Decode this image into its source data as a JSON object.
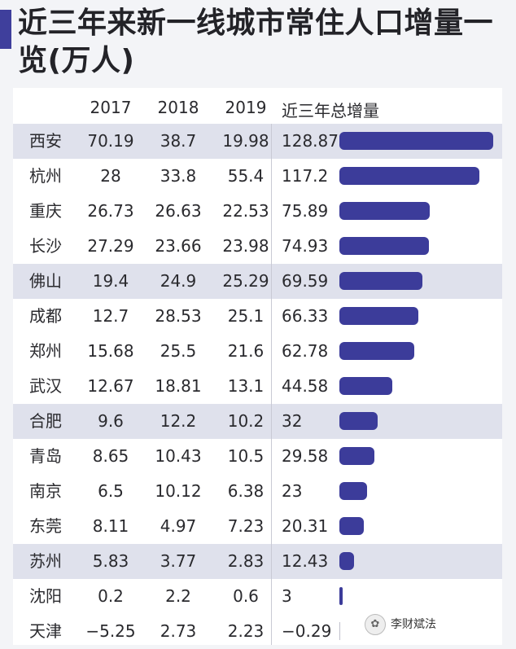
{
  "title": "近三年来新一线城市常住人口增量一览(万人)",
  "headers": [
    "2017",
    "2018",
    "2019",
    "近三年总增量"
  ],
  "watermark": "李财斌法",
  "chart_data": {
    "type": "bar",
    "title": "近三年来新一线城市常住人口增量一览(万人)",
    "columns": [
      "2017",
      "2018",
      "2019",
      "近三年总增量"
    ],
    "categories": [
      "西安",
      "杭州",
      "重庆",
      "长沙",
      "佛山",
      "成都",
      "郑州",
      "武汉",
      "合肥",
      "青岛",
      "南京",
      "东莞",
      "苏州",
      "沈阳",
      "天津"
    ],
    "rows": [
      {
        "city": "西安",
        "v2017": "70.19",
        "v2018": "38.7",
        "v2019": "19.98",
        "total": "128.87",
        "total_value": 128.87
      },
      {
        "city": "杭州",
        "v2017": "28",
        "v2018": "33.8",
        "v2019": "55.4",
        "total": "117.2",
        "total_value": 117.2
      },
      {
        "city": "重庆",
        "v2017": "26.73",
        "v2018": "26.63",
        "v2019": "22.53",
        "total": "75.89",
        "total_value": 75.89
      },
      {
        "city": "长沙",
        "v2017": "27.29",
        "v2018": "23.66",
        "v2019": "23.98",
        "total": "74.93",
        "total_value": 74.93
      },
      {
        "city": "佛山",
        "v2017": "19.4",
        "v2018": "24.9",
        "v2019": "25.29",
        "total": "69.59",
        "total_value": 69.59
      },
      {
        "city": "成都",
        "v2017": "12.7",
        "v2018": "28.53",
        "v2019": "25.1",
        "total": "66.33",
        "total_value": 66.33
      },
      {
        "city": "郑州",
        "v2017": "15.68",
        "v2018": "25.5",
        "v2019": "21.6",
        "total": "62.78",
        "total_value": 62.78
      },
      {
        "city": "武汉",
        "v2017": "12.67",
        "v2018": "18.81",
        "v2019": "13.1",
        "total": "44.58",
        "total_value": 44.58
      },
      {
        "city": "合肥",
        "v2017": "9.6",
        "v2018": "12.2",
        "v2019": "10.2",
        "total": "32",
        "total_value": 32
      },
      {
        "city": "青岛",
        "v2017": "8.65",
        "v2018": "10.43",
        "v2019": "10.5",
        "total": "29.58",
        "total_value": 29.58
      },
      {
        "city": "南京",
        "v2017": "6.5",
        "v2018": "10.12",
        "v2019": "6.38",
        "total": "23",
        "total_value": 23
      },
      {
        "city": "东莞",
        "v2017": "8.11",
        "v2018": "4.97",
        "v2019": "7.23",
        "total": "20.31",
        "total_value": 20.31
      },
      {
        "city": "苏州",
        "v2017": "5.83",
        "v2018": "3.77",
        "v2019": "2.83",
        "total": "12.43",
        "total_value": 12.43
      },
      {
        "city": "沈阳",
        "v2017": "0.2",
        "v2018": "2.2",
        "v2019": "0.6",
        "total": "3",
        "total_value": 3
      },
      {
        "city": "天津",
        "v2017": "−5.25",
        "v2018": "2.73",
        "v2019": "2.23",
        "total": "−0.29",
        "total_value": -0.29
      }
    ],
    "shaded_rows": [
      0,
      4,
      8,
      12
    ],
    "bar_color": "#3c3c9a",
    "shade_color": "#dfe1ec",
    "xlim": [
      0,
      128.87
    ]
  }
}
